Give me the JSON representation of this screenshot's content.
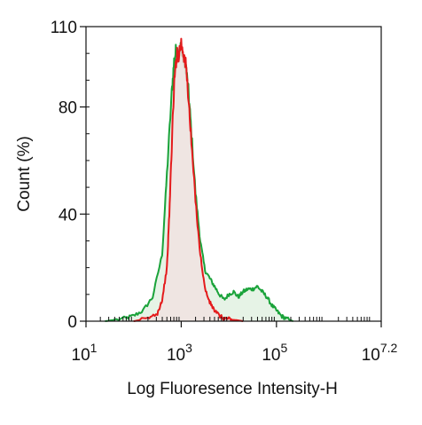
{
  "chart_data": {
    "type": "area",
    "title": "",
    "xlabel": "Log Fluoresence Intensity-H",
    "ylabel": "Count  (%)",
    "x_scale": "log10",
    "xlim_exponent": [
      1,
      7.2
    ],
    "ylim": [
      0,
      110
    ],
    "x_ticks": [
      {
        "base": "10",
        "exp": "1",
        "value": 1
      },
      {
        "base": "10",
        "exp": "3",
        "value": 3
      },
      {
        "base": "10",
        "exp": "5",
        "value": 5
      },
      {
        "base": "10",
        "exp": "7.2",
        "value": 7.2
      }
    ],
    "y_ticks": [
      {
        "label": "0",
        "value": 0
      },
      {
        "label": "40",
        "value": 40
      },
      {
        "label": "80",
        "value": 80
      },
      {
        "label": "110",
        "value": 110
      }
    ],
    "grid": false,
    "legend": "none",
    "series": [
      {
        "color": "#1aa33a",
        "fill": "#e6f3e6",
        "x_exponent": [
          1.4,
          1.8,
          2.0,
          2.2,
          2.4,
          2.6,
          2.7,
          2.8,
          2.85,
          2.9,
          2.95,
          3.0,
          3.05,
          3.1,
          3.15,
          3.2,
          3.3,
          3.4,
          3.5,
          3.6,
          3.7,
          3.8,
          3.9,
          4.0,
          4.1,
          4.2,
          4.3,
          4.4,
          4.5,
          4.6,
          4.7,
          4.8,
          4.9,
          5.0,
          5.1,
          5.2,
          5.35
        ],
        "values": [
          0,
          1,
          2,
          4,
          9,
          25,
          55,
          85,
          97,
          102,
          99,
          103,
          97,
          95,
          86,
          74,
          48,
          30,
          19,
          16,
          13,
          10,
          8,
          10,
          11,
          9,
          11,
          12,
          12,
          13,
          11,
          9,
          6,
          4,
          2,
          1,
          0
        ]
      },
      {
        "color": "#e41a1c",
        "fill": "#f0e2e0",
        "x_exponent": [
          2.0,
          2.3,
          2.5,
          2.6,
          2.7,
          2.75,
          2.8,
          2.85,
          2.9,
          2.95,
          3.0,
          3.05,
          3.1,
          3.15,
          3.2,
          3.3,
          3.4,
          3.5,
          3.6,
          3.7,
          3.8,
          3.9,
          4.0,
          4.1,
          4.2,
          4.3
        ],
        "values": [
          0,
          1,
          3,
          8,
          20,
          40,
          65,
          88,
          99,
          100,
          104,
          100,
          95,
          84,
          70,
          45,
          25,
          12,
          7,
          4,
          2,
          1,
          1,
          0.5,
          0.3,
          0
        ]
      }
    ]
  }
}
